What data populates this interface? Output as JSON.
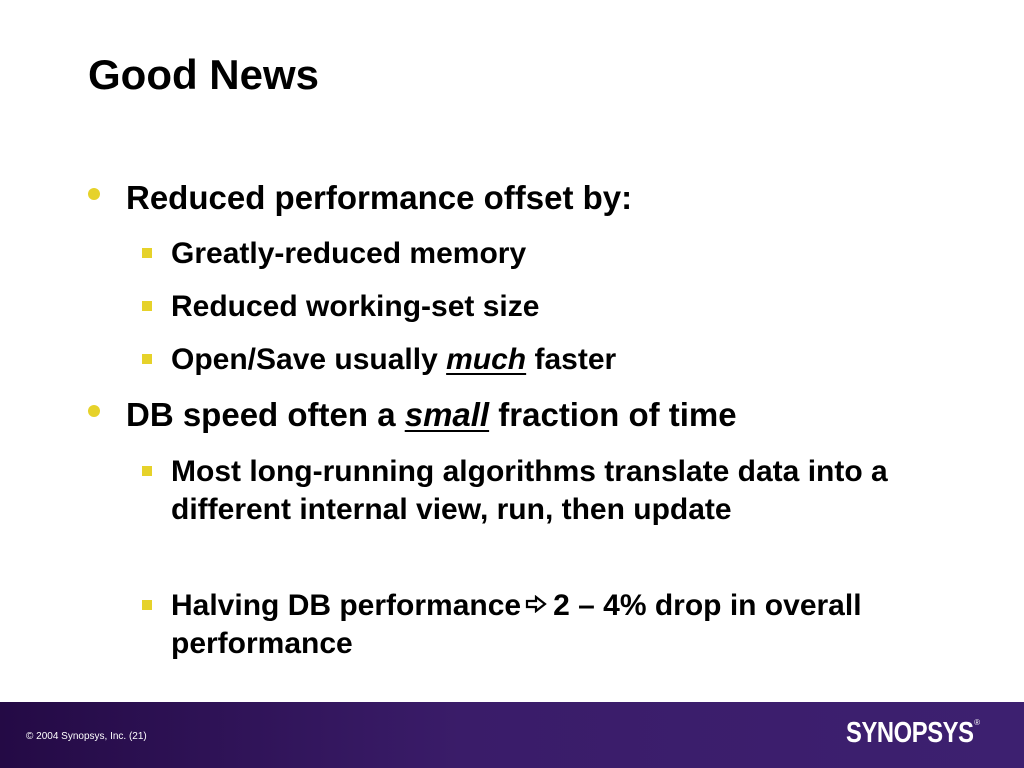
{
  "slide": {
    "title": "Good News",
    "bullets": [
      {
        "text": "Reduced performance offset by:",
        "sub": [
          {
            "text": "Greatly-reduced memory"
          },
          {
            "text": "Reduced working-set size"
          },
          {
            "before": "Open/Save usually ",
            "emphasis": "much",
            "after": " faster"
          }
        ]
      },
      {
        "before": "DB speed often a ",
        "emphasis": "small",
        "after": " fraction of time",
        "sub": [
          {
            "text": "Most long-running algorithms translate data into a different internal view, run, then update"
          },
          {
            "before": "Halving DB performance",
            "icon": "hollow-right-arrow",
            "after": "2 – 4% drop in overall performance"
          }
        ]
      }
    ]
  },
  "footer": {
    "copyright": "© 2004 Synopsys, Inc. (21)",
    "logo": "SYNOPSYS",
    "logo_mark": "®"
  },
  "colors": {
    "bullet": "#e6d22a",
    "footer_bg": "#3a1c69",
    "text": "#000000"
  }
}
